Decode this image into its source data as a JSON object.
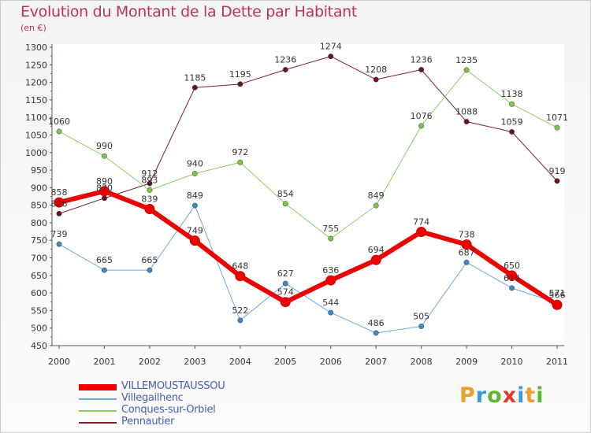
{
  "title": "Evolution du Montant de la Dette par Habitant",
  "unit_label": "(en €)",
  "logo": {
    "letters": [
      "P",
      "r",
      "o",
      "x",
      "i",
      "t",
      "i"
    ],
    "colors": [
      "#e8a030",
      "#3a9ad9",
      "#5ab832",
      "#e23a2a",
      "#3a9ad9",
      "#e8a030",
      "#5ab832"
    ]
  },
  "chart_data": {
    "type": "line",
    "x": [
      "2000",
      "2001",
      "2002",
      "2003",
      "2004",
      "2005",
      "2006",
      "2007",
      "2008",
      "2009",
      "2010",
      "2011"
    ],
    "ylim": [
      450,
      1300
    ],
    "yticks": [
      450,
      500,
      550,
      600,
      650,
      700,
      750,
      800,
      850,
      900,
      950,
      1000,
      1050,
      1100,
      1150,
      1200,
      1250,
      1300
    ],
    "grid": false,
    "legend_position": "bottom-left",
    "series": [
      {
        "name": "Pennautier",
        "color": "#7a1f2b",
        "markerColor": "#6a1420",
        "width": 1,
        "values": [
          826,
          870,
          912,
          1185,
          1195,
          1236,
          1274,
          1208,
          1236,
          1088,
          1059,
          919
        ]
      },
      {
        "name": "Conques-sur-Orbiel",
        "color": "#8ccc62",
        "markerColor": "#7ac943",
        "width": 1,
        "values": [
          1060,
          990,
          893,
          940,
          972,
          854,
          755,
          849,
          1076,
          1235,
          1138,
          1071
        ]
      },
      {
        "name": "Villegailhenc",
        "color": "#6aa8d8",
        "markerColor": "#3f88c8",
        "width": 1,
        "values": [
          739,
          665,
          665,
          849,
          522,
          627,
          544,
          486,
          505,
          687,
          614,
          571
        ]
      },
      {
        "name": "VILLEMOUSTAUSSOU",
        "color": "#ee0000",
        "markerColor": "#ee0000",
        "width": 6,
        "values": [
          858,
          890,
          839,
          749,
          648,
          574,
          636,
          694,
          774,
          738,
          650,
          566
        ]
      }
    ],
    "labels": {
      "Pennautier": [
        "826",
        "870",
        "912",
        "1185",
        "1195",
        "1236",
        "1274",
        "1208",
        "1236",
        "1088",
        "1059",
        "919"
      ],
      "Conques-sur-Orbiel": [
        "1060",
        "990",
        "893",
        "940",
        "972",
        "854",
        "755",
        "849",
        "1076",
        "1235",
        "1138",
        "1071"
      ],
      "Villegailhenc": [
        "739",
        "665",
        "665",
        "849",
        "522",
        "627",
        "544",
        "486",
        "505",
        "687",
        "614",
        "571"
      ],
      "VILLEMOUSTAUSSOU": [
        "858",
        "890",
        "839",
        "749",
        "648",
        "574",
        "636",
        "694",
        "774",
        "738",
        "650",
        "566"
      ]
    },
    "legend_order": [
      "VILLEMOUSTAUSSOU",
      "Villegailhenc",
      "Conques-sur-Orbiel",
      "Pennautier"
    ]
  }
}
